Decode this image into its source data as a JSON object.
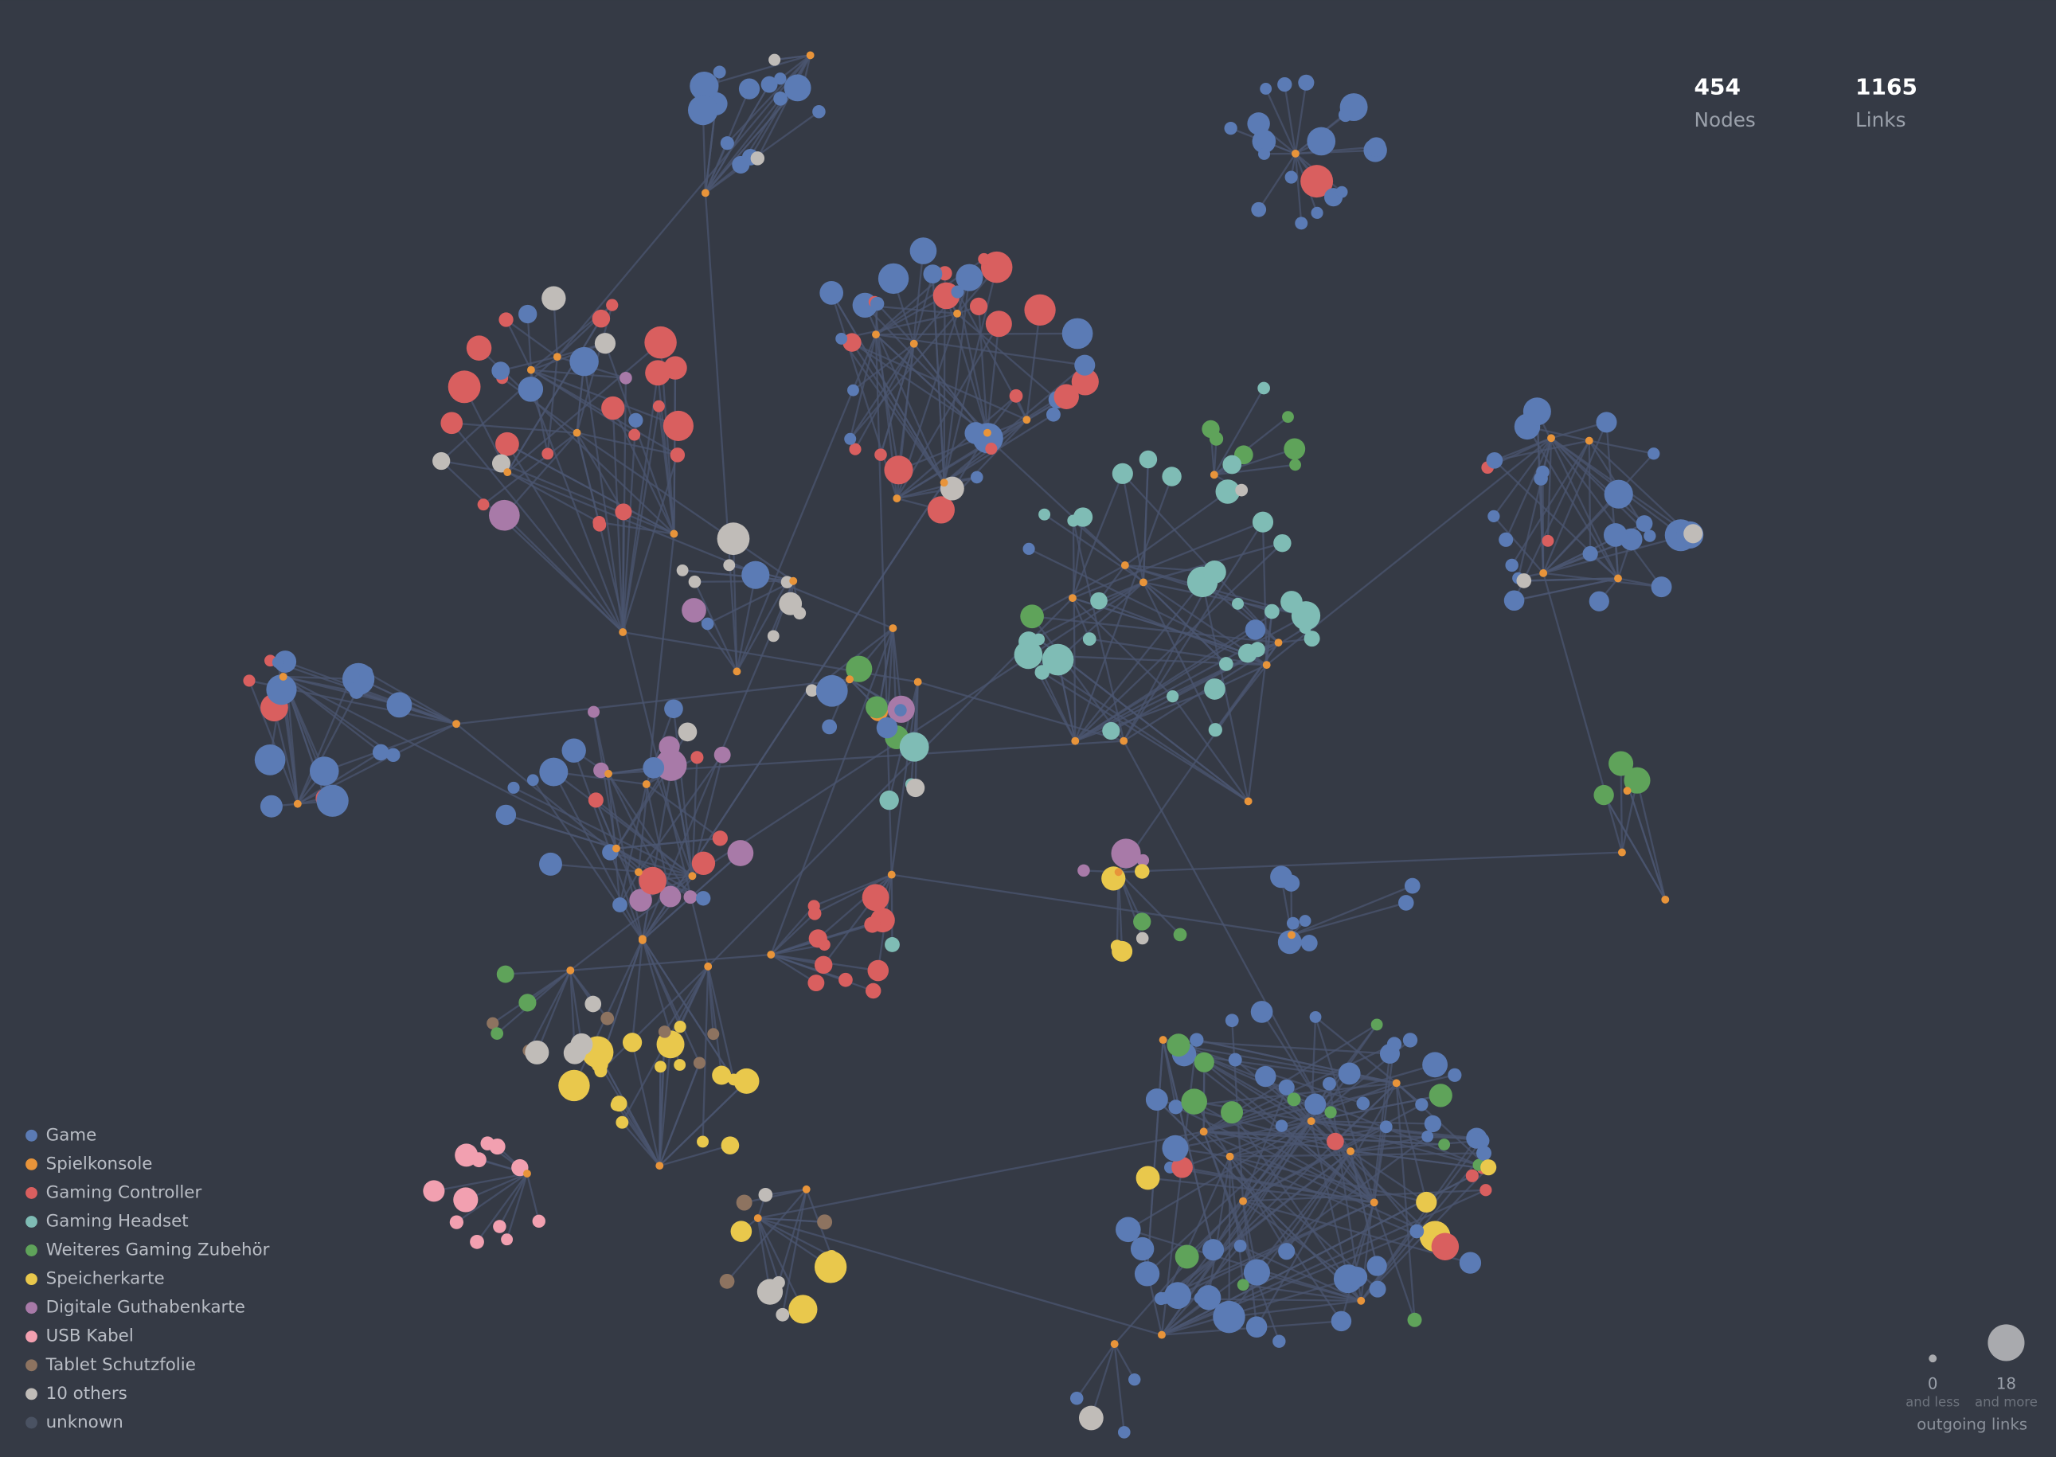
{
  "stats": [
    {
      "value": 454,
      "label": "Nodes"
    },
    {
      "value": 1165,
      "label": "Links"
    }
  ],
  "legend": [
    {
      "label": "Game",
      "color": "#5b7bb5"
    },
    {
      "label": "Spielkonsole",
      "color": "#e8943a"
    },
    {
      "label": "Gaming Controller",
      "color": "#d95f5f"
    },
    {
      "label": "Gaming Headset",
      "color": "#7fbcb5"
    },
    {
      "label": "Weiteres Gaming Zubehör",
      "color": "#5fa35a"
    },
    {
      "label": "Speicherkarte",
      "color": "#e9c84c"
    },
    {
      "label": "Digitale Guthabenkarte",
      "color": "#a87aa8"
    },
    {
      "label": "USB Kabel",
      "color": "#f2a0b0"
    },
    {
      "label": "Tablet Schutzfolie",
      "color": "#8d7360"
    },
    {
      "label": "10 others",
      "color": "#c0bcb8"
    },
    {
      "label": "unknown",
      "color": "#4a5262"
    }
  ],
  "size_legend": {
    "min": {
      "value": 0,
      "label": "and less"
    },
    "max": {
      "value": 18,
      "label": "and more"
    },
    "title": "outgoing links"
  }
}
